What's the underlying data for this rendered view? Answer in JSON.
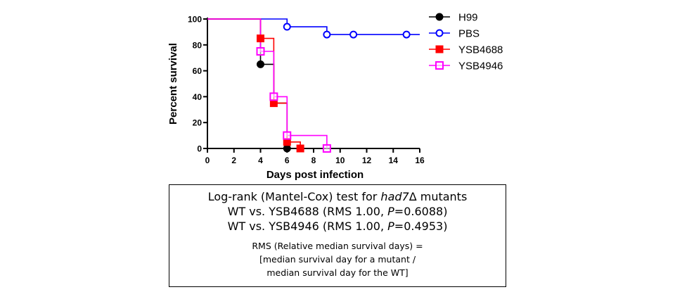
{
  "chart_data": {
    "type": "line",
    "subtype": "kaplan-meier-survival",
    "xlabel": "Days post infection",
    "ylabel": "Percent survival",
    "xlim": [
      0,
      16
    ],
    "ylim": [
      0,
      100
    ],
    "xticks": [
      0,
      2,
      4,
      6,
      8,
      10,
      12,
      14,
      16
    ],
    "yticks": [
      0,
      20,
      40,
      60,
      80,
      100
    ],
    "grid": false,
    "legend_position": "top-right",
    "series": [
      {
        "name": "H99",
        "color": "#000000",
        "marker": "filled-circle",
        "steps": [
          [
            0,
            100
          ],
          [
            4,
            65
          ],
          [
            5,
            35
          ],
          [
            6,
            0
          ]
        ],
        "markers": [
          [
            4,
            65
          ],
          [
            6,
            0
          ]
        ]
      },
      {
        "name": "PBS",
        "color": "#0000ff",
        "marker": "open-circle",
        "steps": [
          [
            0,
            100
          ],
          [
            6,
            94
          ],
          [
            9,
            88
          ],
          [
            16,
            88
          ]
        ],
        "markers": [
          [
            6,
            94
          ],
          [
            9,
            88
          ],
          [
            11,
            88
          ],
          [
            15,
            88
          ]
        ]
      },
      {
        "name": "YSB4688",
        "color": "#ff0000",
        "marker": "filled-square",
        "steps": [
          [
            0,
            100
          ],
          [
            4,
            85
          ],
          [
            5,
            35
          ],
          [
            6,
            5
          ],
          [
            7,
            0
          ]
        ],
        "markers": [
          [
            4,
            85
          ],
          [
            5,
            35
          ],
          [
            6,
            5
          ],
          [
            7,
            0
          ]
        ]
      },
      {
        "name": "YSB4946",
        "color": "#ff00ff",
        "marker": "open-square",
        "steps": [
          [
            0,
            100
          ],
          [
            4,
            75
          ],
          [
            5,
            40
          ],
          [
            6,
            10
          ],
          [
            9,
            0
          ]
        ],
        "markers": [
          [
            4,
            75
          ],
          [
            5,
            40
          ],
          [
            6,
            10
          ],
          [
            9,
            0
          ]
        ]
      }
    ]
  },
  "stats": {
    "title_prefix": "Log-rank (Mantel-Cox) test for ",
    "title_gene": "had7",
    "title_suffix": "Δ mutants",
    "comparisons": [
      {
        "left": "WT vs. YSB4688 (RMS 1.00, ",
        "p_label": "P",
        "right": "=0.6088)"
      },
      {
        "left": "WT vs. YSB4946 (RMS 1.00, ",
        "p_label": "P",
        "right": "=0.4953)"
      }
    ],
    "note_lines": [
      "RMS (Relative median survival days) =",
      "[median survival day for a mutant  /",
      "median survival day for the WT]"
    ]
  }
}
